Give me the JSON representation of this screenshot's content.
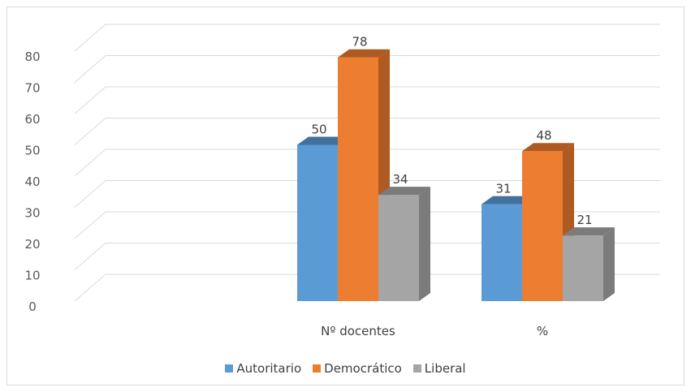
{
  "chart_data": {
    "type": "bar",
    "categories": [
      "Nº docentes",
      "%"
    ],
    "series": [
      {
        "name": "Autoritario",
        "values": [
          50,
          31
        ],
        "color": "#5b9bd5",
        "side_color": "#41719c"
      },
      {
        "name": "Democrático",
        "values": [
          78,
          48
        ],
        "color": "#ed7d31",
        "side_color": "#ae5a21"
      },
      {
        "name": "Liberal",
        "values": [
          34,
          21
        ],
        "color": "#a5a5a5",
        "side_color": "#7b7b7b"
      }
    ],
    "ylim": [
      0,
      80
    ],
    "yticks": [
      "0",
      "10",
      "20",
      "30",
      "40",
      "50",
      "60",
      "70",
      "80"
    ],
    "grid": true,
    "legend_position": "bottom",
    "three_d": true
  }
}
